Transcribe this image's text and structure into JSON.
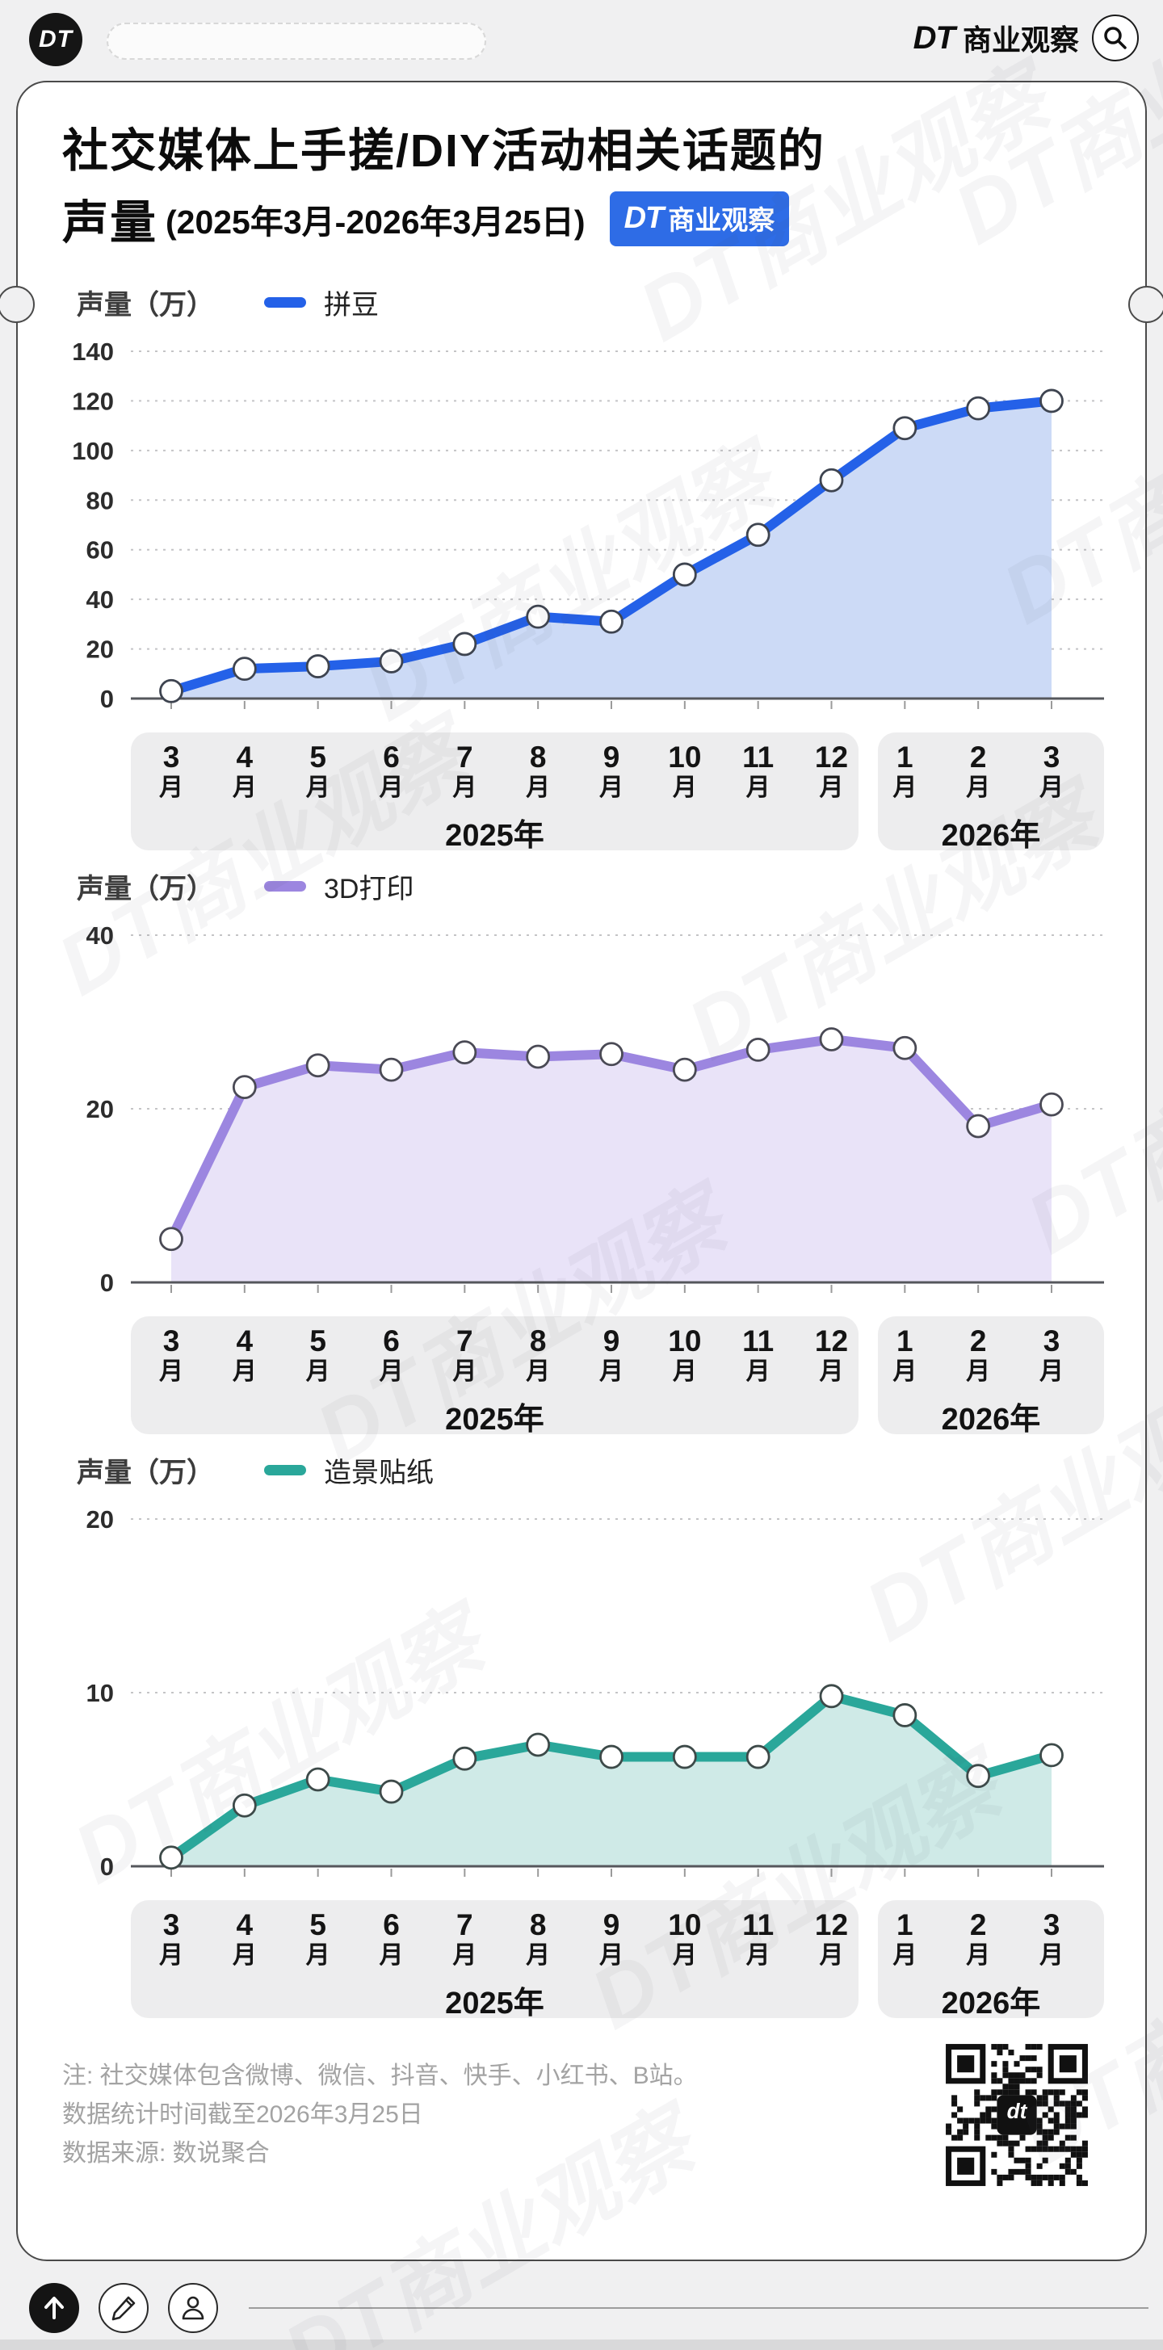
{
  "header": {
    "logo_text": "DT",
    "brand_dt": "DT",
    "brand_name": "商业观察"
  },
  "title": {
    "line1": "社交媒体上手搓/DIY活动相关话题的",
    "line2": "声量",
    "date_range": "(2025年3月-2026年3月25日)",
    "badge_dt": "DT",
    "badge_name": "商业观察"
  },
  "chart_data": [
    {
      "type": "area",
      "title": "声量（万）",
      "legend": "拼豆",
      "line_color": "#2461e8",
      "fill_color": "#ccdaf6",
      "marker_stroke": "#3e4450",
      "categories": [
        "3月",
        "4月",
        "5月",
        "6月",
        "7月",
        "8月",
        "9月",
        "10月",
        "11月",
        "12月",
        "1月",
        "2月",
        "3月"
      ],
      "values": [
        3,
        12,
        13,
        15,
        22,
        33,
        31,
        50,
        66,
        88,
        109,
        117,
        120
      ],
      "ylim": [
        0,
        140
      ],
      "yticks": [
        0,
        20,
        40,
        60,
        80,
        100,
        120,
        140
      ],
      "grid": "dotted",
      "year_bands": [
        {
          "label": "2025年",
          "start": 0,
          "end": 9
        },
        {
          "label": "2026年",
          "start": 10,
          "end": 12
        }
      ]
    },
    {
      "type": "area",
      "title": "声量（万）",
      "legend": "3D打印",
      "line_color": "#9c86e0",
      "fill_color": "#e9e3f8",
      "marker_stroke": "#4a4a55",
      "categories": [
        "3月",
        "4月",
        "5月",
        "6月",
        "7月",
        "8月",
        "9月",
        "10月",
        "11月",
        "12月",
        "1月",
        "2月",
        "3月"
      ],
      "values": [
        5,
        22.5,
        25,
        24.5,
        26.5,
        26,
        26.3,
        24.5,
        26.8,
        28,
        27,
        18,
        20.5
      ],
      "ylim": [
        0,
        40
      ],
      "yticks": [
        0,
        20,
        40
      ],
      "grid": "dotted",
      "year_bands": [
        {
          "label": "2025年",
          "start": 0,
          "end": 9
        },
        {
          "label": "2026年",
          "start": 10,
          "end": 12
        }
      ]
    },
    {
      "type": "area",
      "title": "声量（万）",
      "legend": "造景贴纸",
      "line_color": "#2aa79a",
      "fill_color": "#cfeae7",
      "marker_stroke": "#3d4a49",
      "categories": [
        "3月",
        "4月",
        "5月",
        "6月",
        "7月",
        "8月",
        "9月",
        "10月",
        "11月",
        "12月",
        "1月",
        "2月",
        "3月"
      ],
      "values": [
        0.5,
        3.5,
        5,
        4.3,
        6.2,
        7,
        6.3,
        6.3,
        6.3,
        9.8,
        8.7,
        5.2,
        6.4
      ],
      "ylim": [
        0,
        20
      ],
      "yticks": [
        0,
        10,
        20
      ],
      "grid": "dotted",
      "year_bands": [
        {
          "label": "2025年",
          "start": 0,
          "end": 9
        },
        {
          "label": "2026年",
          "start": 10,
          "end": 12
        }
      ]
    }
  ],
  "footer": {
    "note1": "注: 社交媒体包含微博、微信、抖音、快手、小红书、B站。",
    "note2": "数据统计时间截至2026年3月25日",
    "note3": "数据来源: 数说聚合",
    "qr_label": "dt"
  },
  "watermark": "DT商业观察"
}
